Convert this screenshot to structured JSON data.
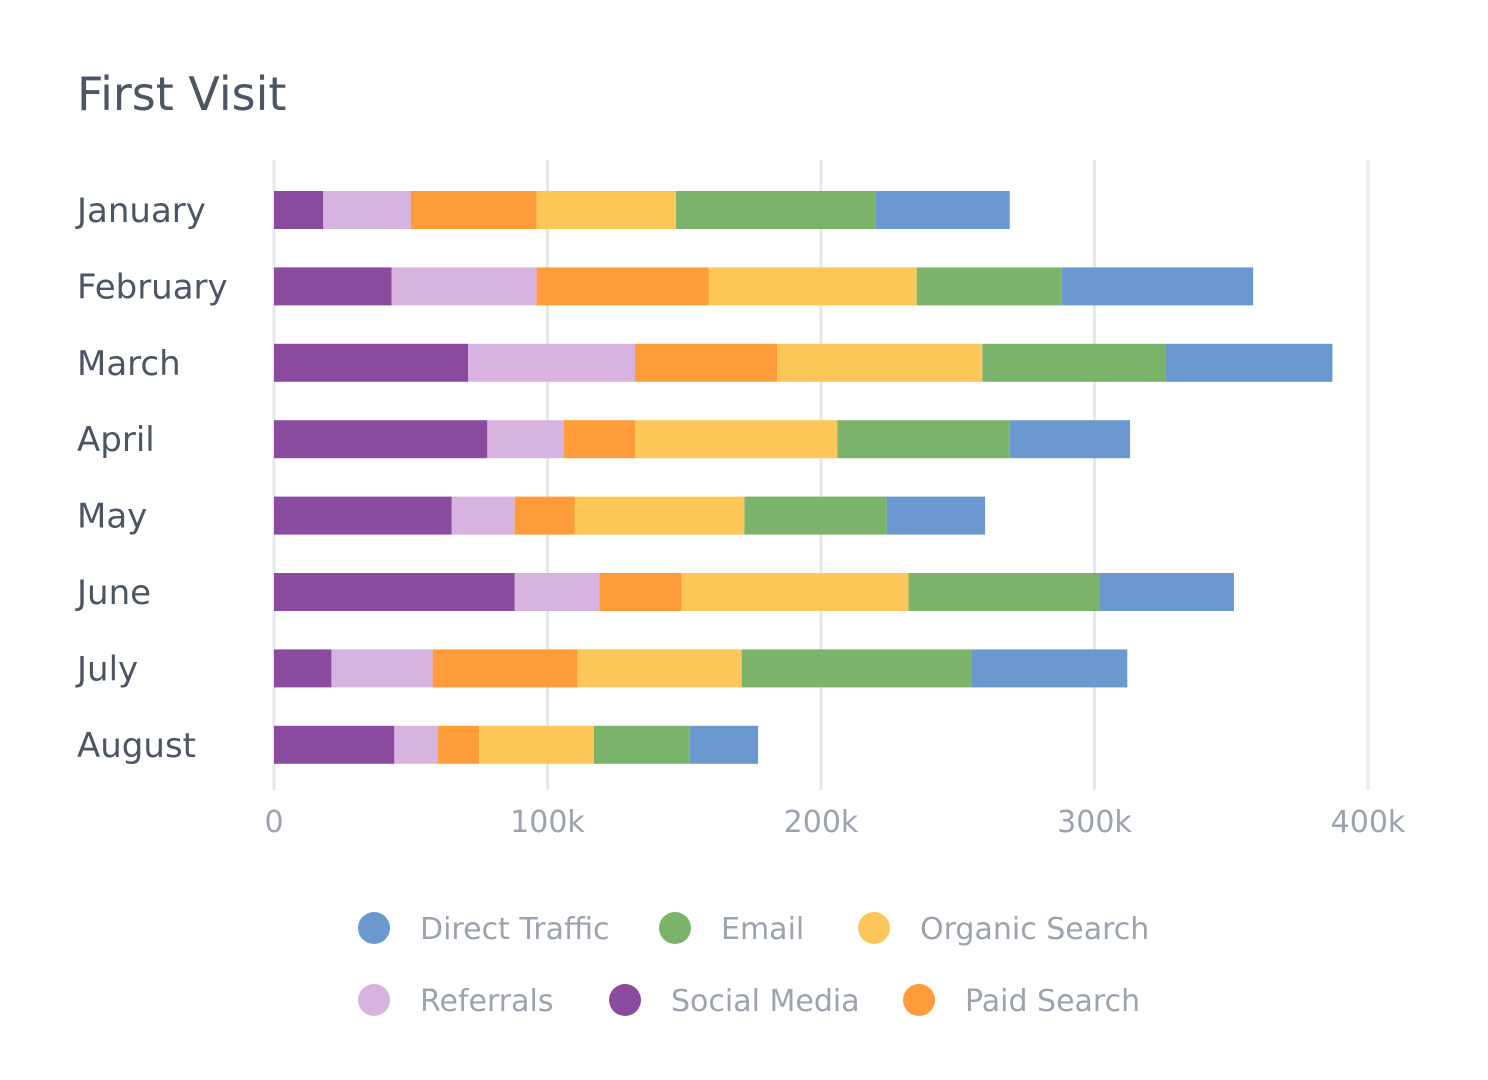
{
  "chart_data": {
    "type": "bar",
    "orientation": "horizontal",
    "stacked": true,
    "title": "First Visit",
    "xlabel": "",
    "ylabel": "",
    "xlim": [
      0,
      400000
    ],
    "grid": true,
    "categories": [
      "January",
      "February",
      "March",
      "April",
      "May",
      "June",
      "July",
      "August"
    ],
    "x_ticks": [
      0,
      100000,
      200000,
      300000,
      400000
    ],
    "x_tick_labels": [
      "0",
      "100k",
      "200k",
      "300k",
      "400k"
    ],
    "series": [
      {
        "name": "Social Media",
        "color": "#8a4a9e",
        "values": [
          18000,
          43000,
          71000,
          78000,
          65000,
          88000,
          21000,
          44000
        ]
      },
      {
        "name": "Referrals",
        "color": "#d7b3e0",
        "values": [
          32000,
          53000,
          61000,
          28000,
          23000,
          31000,
          37000,
          16000
        ]
      },
      {
        "name": "Paid Search",
        "color": "#fd9c39",
        "values": [
          46000,
          63000,
          52000,
          26000,
          22000,
          30000,
          53000,
          15000
        ]
      },
      {
        "name": "Organic Search",
        "color": "#fcc659",
        "values": [
          51000,
          76000,
          75000,
          74000,
          62000,
          83000,
          60000,
          42000
        ]
      },
      {
        "name": "Email",
        "color": "#7ab369",
        "values": [
          73000,
          53000,
          67000,
          63000,
          52000,
          70000,
          84000,
          35000
        ]
      },
      {
        "name": "Direct Traffic",
        "color": "#6b98cf",
        "values": [
          49000,
          70000,
          61000,
          44000,
          36000,
          49000,
          57000,
          25000
        ]
      }
    ],
    "legend": {
      "placement": "bottom",
      "order": [
        "Direct Traffic",
        "Email",
        "Organic Search",
        "Referrals",
        "Social Media",
        "Paid Search"
      ]
    }
  }
}
